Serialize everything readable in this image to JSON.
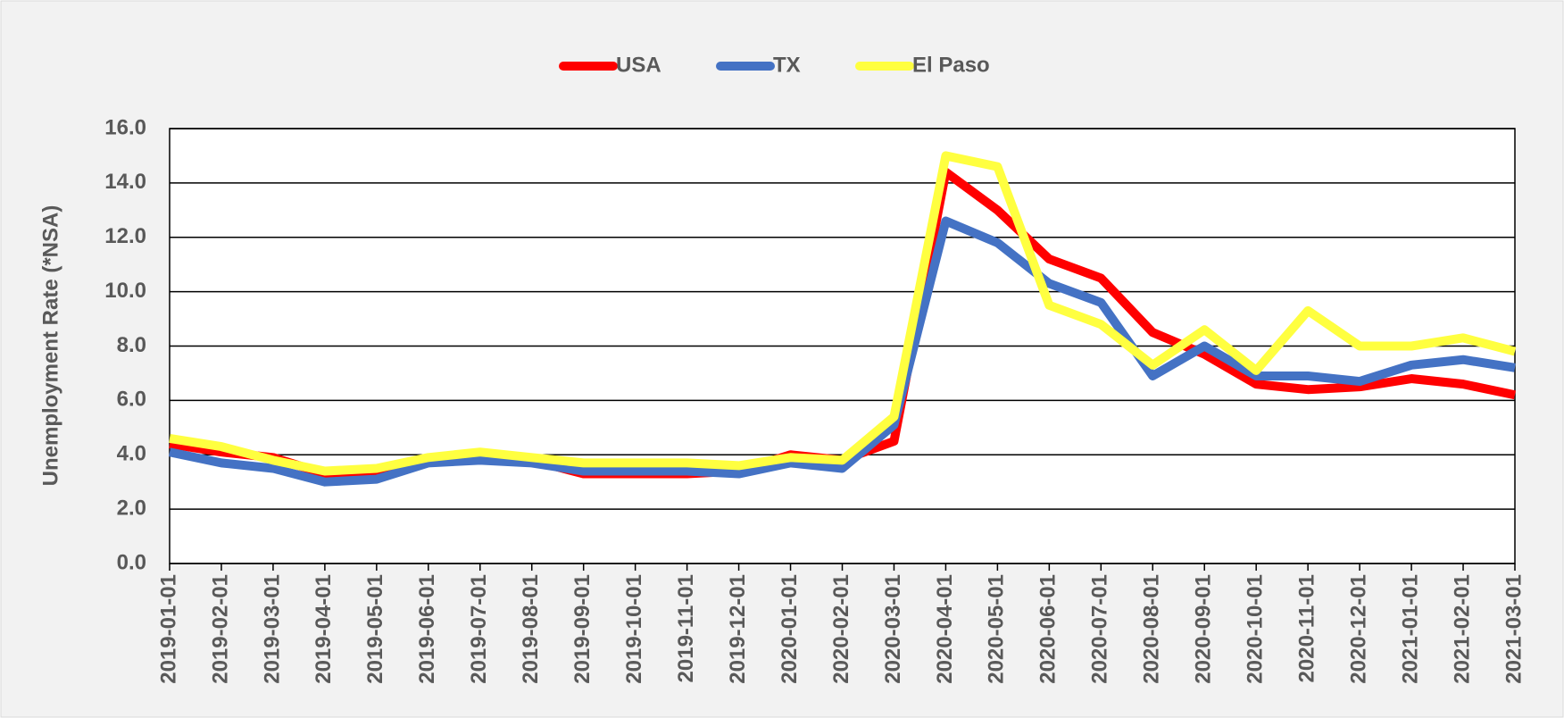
{
  "chart_data": {
    "type": "line",
    "y_label": "Unemployment Rate (*NSA)",
    "categories": [
      "2019-01-01",
      "2019-02-01",
      "2019-03-01",
      "2019-04-01",
      "2019-05-01",
      "2019-06-01",
      "2019-07-01",
      "2019-08-01",
      "2019-09-01",
      "2019-10-01",
      "2019-11-01",
      "2019-12-01",
      "2020-01-01",
      "2020-02-01",
      "2020-03-01",
      "2020-04-01",
      "2020-05-01",
      "2020-06-01",
      "2020-07-01",
      "2020-08-01",
      "2020-09-01",
      "2020-10-01",
      "2020-11-01",
      "2020-12-01",
      "2021-01-01",
      "2021-02-01",
      "2021-03-01"
    ],
    "series": [
      {
        "name": "USA",
        "color": "#ff0000",
        "values": [
          4.4,
          4.1,
          3.9,
          3.3,
          3.4,
          3.8,
          4.0,
          3.8,
          3.3,
          3.3,
          3.3,
          3.4,
          4.0,
          3.8,
          4.5,
          14.4,
          13.0,
          11.2,
          10.5,
          8.5,
          7.7,
          6.6,
          6.4,
          6.5,
          6.8,
          6.6,
          6.2
        ]
      },
      {
        "name": "TX",
        "color": "#4472c4",
        "values": [
          4.1,
          3.7,
          3.5,
          3.0,
          3.1,
          3.7,
          3.8,
          3.7,
          3.4,
          3.4,
          3.4,
          3.3,
          3.7,
          3.5,
          5.1,
          12.6,
          11.8,
          10.3,
          9.6,
          6.9,
          8.0,
          6.9,
          6.9,
          6.7,
          7.3,
          7.5,
          7.2
        ]
      },
      {
        "name": "El Paso",
        "color": "#ffff40",
        "values": [
          4.6,
          4.3,
          3.8,
          3.4,
          3.5,
          3.9,
          4.1,
          3.9,
          3.7,
          3.7,
          3.7,
          3.6,
          3.9,
          3.8,
          5.4,
          15.0,
          14.6,
          9.5,
          8.8,
          7.3,
          8.6,
          7.1,
          9.3,
          8.0,
          8.0,
          8.3,
          7.8
        ]
      }
    ],
    "ylim": [
      0,
      16
    ],
    "yticks": [
      {
        "value": 0,
        "label": "0.0"
      },
      {
        "value": 2,
        "label": "2.0"
      },
      {
        "value": 4,
        "label": "4.0"
      },
      {
        "value": 6,
        "label": "6.0"
      },
      {
        "value": 8,
        "label": "8.0"
      },
      {
        "value": 10,
        "label": "10.0"
      },
      {
        "value": 12,
        "label": "12.0"
      },
      {
        "value": 14,
        "label": "14.0"
      },
      {
        "value": 16,
        "label": "16.0"
      }
    ],
    "grid": true,
    "legend": "top"
  }
}
